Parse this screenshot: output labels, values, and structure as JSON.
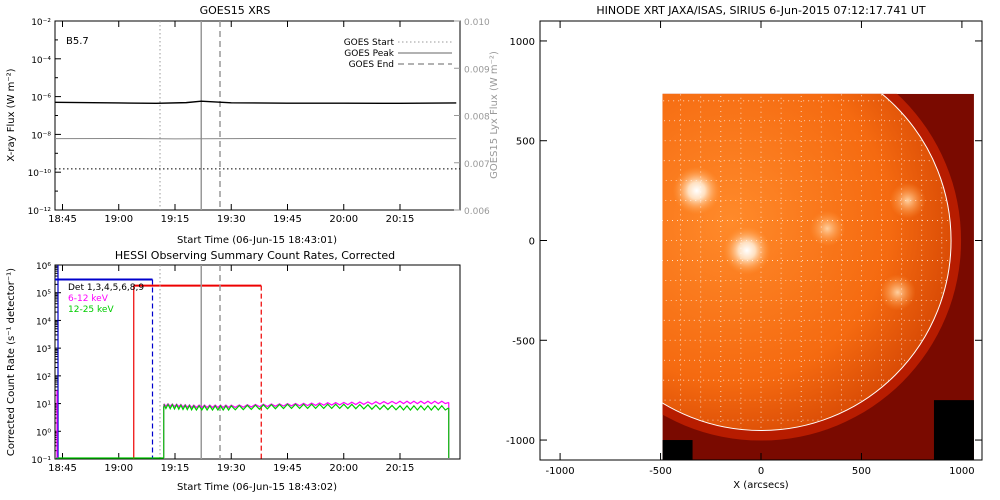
{
  "chart_data": [
    {
      "type": "line",
      "title": "GOES15 XRS",
      "xlabel": "Start Time (06-Jun-15 18:43:01)",
      "ylabel": "X-ray Flux (W m⁻²)",
      "y2label": "GOES15 Lyx Flux (W m⁻²)",
      "y_scale": "log",
      "ylim": [
        1e-12,
        0.01
      ],
      "y2lim": [
        0.006,
        0.01
      ],
      "x_ticks": [
        "18:45",
        "19:00",
        "19:15",
        "19:30",
        "19:45",
        "20:00",
        "20:15"
      ],
      "y_ticks": [
        "10⁻¹²",
        "10⁻¹⁰",
        "10⁻⁸",
        "10⁻⁶",
        "10⁻⁴",
        "10⁻²"
      ],
      "y2_ticks": [
        "0.006",
        "0.007",
        "0.008",
        "0.009",
        "0.010"
      ],
      "annotation": "B5.7",
      "legend": {
        "placement": "top-right",
        "entries": [
          {
            "label": "GOES Start",
            "style": "dotted"
          },
          {
            "label": "GOES Peak",
            "style": "solid"
          },
          {
            "label": "GOES End",
            "style": "dashed"
          }
        ]
      },
      "event_lines": {
        "start": "19:11",
        "peak": "19:22",
        "end": "19:27"
      },
      "series": [
        {
          "color": "#000000",
          "x": [
            "18:43",
            "19:00",
            "19:10",
            "19:18",
            "19:22",
            "19:30",
            "19:45",
            "20:00",
            "20:15",
            "20:30"
          ],
          "values": [
            5e-07,
            4.6e-07,
            4.4e-07,
            4.8e-07,
            5.7e-07,
            4.7e-07,
            4.5e-07,
            4.5e-07,
            4.4e-07,
            4.6e-07
          ]
        },
        {
          "color": "#888888",
          "x": [
            "18:43",
            "19:00",
            "19:15",
            "19:30",
            "19:45",
            "20:00",
            "20:15",
            "20:30"
          ],
          "values": [
            6e-09,
            6.1e-09,
            5.8e-09,
            6e-09,
            6.1e-09,
            6e-09,
            6e-09,
            6e-09
          ]
        }
      ],
      "baseline_dotted": 1.5e-10,
      "colors": {
        "goes_long": "#000000",
        "lyx": "#888888",
        "event": "#999999"
      }
    },
    {
      "type": "line",
      "title": "HESSI Observing Summary Count Rates, Corrected",
      "xlabel": "Start Time (06-Jun-15 18:43:02)",
      "ylabel": "Corrected Count Rate (s⁻¹ detector⁻¹)",
      "y_scale": "log",
      "ylim": [
        0.1,
        1000000.0
      ],
      "x_ticks": [
        "18:45",
        "19:00",
        "19:15",
        "19:30",
        "19:45",
        "20:00",
        "20:15"
      ],
      "y_ticks": [
        "10⁻¹",
        "10⁰",
        "10¹",
        "10²",
        "10³",
        "10⁴",
        "10⁵",
        "10⁶"
      ],
      "legend": {
        "placement": "top-left",
        "entries": [
          {
            "label": "Det 1,3,4,5,6,8,9",
            "color": "#000000"
          },
          {
            "label": "6-12 keV",
            "color": "#ff00ff"
          },
          {
            "label": "12-25 keV",
            "color": "#00cc00"
          }
        ]
      },
      "event_lines": {
        "start": "19:11",
        "peak": "19:22",
        "end": "19:27"
      },
      "attenuator_lines": [
        {
          "color": "#0000cc",
          "start": "18:43",
          "end": "19:09",
          "level": 300000.0
        },
        {
          "color": "#ee0000",
          "start": "19:04",
          "end": "19:38",
          "level": 180000.0
        }
      ],
      "series": [
        {
          "name": "6-12 keV",
          "color": "#ff00ff",
          "x": [
            "19:12",
            "19:20",
            "19:30",
            "19:45",
            "20:00",
            "20:15",
            "20:28"
          ],
          "values": [
            9,
            8,
            8,
            9,
            10,
            11,
            11
          ]
        },
        {
          "name": "12-25 keV",
          "color": "#00cc00",
          "x": [
            "19:12",
            "19:20",
            "19:30",
            "19:45",
            "20:00",
            "20:15",
            "20:28"
          ],
          "values": [
            8,
            7,
            7,
            8,
            8,
            7,
            7
          ]
        }
      ]
    },
    {
      "type": "heatmap",
      "title": "HINODE XRT JAXA/ISAS, SIRIUS  6-Jun-2015 07:12:17.741 UT",
      "xlabel": "X (arcsecs)",
      "ylabel": "",
      "xlim": [
        -1100,
        1100
      ],
      "ylim": [
        -1100,
        1100
      ],
      "x_ticks": [
        "-1000",
        "-500",
        "0",
        "500",
        "1000"
      ],
      "y_ticks": [
        "-1000",
        "-500",
        "0",
        "500",
        "1000"
      ],
      "image_extent": {
        "x": [
          -490,
          1060
        ],
        "y": [
          -1100,
          735
        ]
      },
      "solar_radius": 946,
      "grid_step": 100,
      "active_regions": [
        {
          "x": -320,
          "y": 250,
          "level": "bright"
        },
        {
          "x": -70,
          "y": -50,
          "level": "bright"
        },
        {
          "x": 330,
          "y": 60,
          "level": "medium"
        },
        {
          "x": 730,
          "y": 200,
          "level": "medium"
        },
        {
          "x": 680,
          "y": -260,
          "level": "medium"
        }
      ],
      "colors": {
        "disk": "#ff7a1a",
        "limb": "#b71c00",
        "offdisk": "#7a0a00",
        "background": "#000000",
        "bright": "#ffffff"
      }
    }
  ]
}
